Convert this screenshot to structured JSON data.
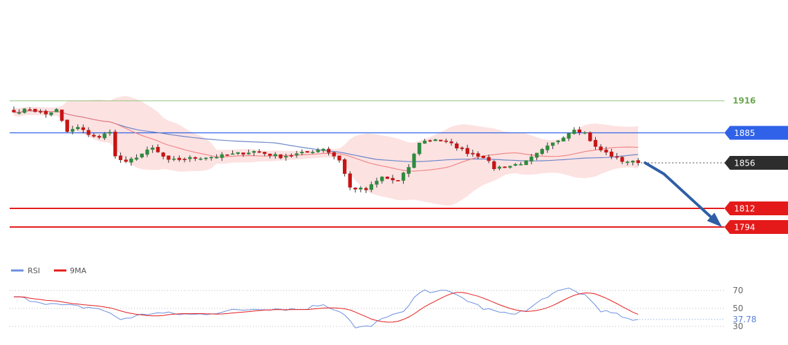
{
  "chart_data": [
    {
      "type": "candlestick",
      "title": "",
      "ylim": [
        1760,
        1935
      ],
      "levels": [
        {
          "name": "1916-level",
          "value": 1916,
          "label": "1916",
          "color": "#8fc27a",
          "style": "text-only"
        },
        {
          "name": "1885-level",
          "value": 1885,
          "label": "1885",
          "color": "#2f62e8",
          "style": "badge"
        },
        {
          "name": "1856-level",
          "value": 1856,
          "label": "1856",
          "color": "#2d2d2d",
          "style": "badge-dotted"
        },
        {
          "name": "1812-level",
          "value": 1812,
          "label": "1812",
          "color": "#e41a1a",
          "style": "badge"
        },
        {
          "name": "1794-level",
          "value": 1794,
          "label": "1794",
          "color": "#e41a1a",
          "style": "badge"
        }
      ],
      "projection": {
        "from": [
          117,
          1856
        ],
        "mid": [
          120,
          1852
        ],
        "to": [
          130,
          1794
        ],
        "color": "#2f5ea6"
      },
      "colors": {
        "up": "#2e8b3e",
        "down": "#c81414",
        "ma_fast": "#f08080",
        "ma_slow": "#6a86c8",
        "band_fill": "#fcd8d8"
      },
      "anchors": [
        {
          "i": 0,
          "close": 1905
        },
        {
          "i": 3,
          "close": 1908
        },
        {
          "i": 6,
          "close": 1903
        },
        {
          "i": 8,
          "close": 1907
        },
        {
          "i": 9,
          "close": 1896
        },
        {
          "i": 10,
          "close": 1886
        },
        {
          "i": 12,
          "close": 1890
        },
        {
          "i": 14,
          "close": 1884
        },
        {
          "i": 16,
          "close": 1880
        },
        {
          "i": 18,
          "close": 1887
        },
        {
          "i": 19,
          "close": 1862
        },
        {
          "i": 21,
          "close": 1856
        },
        {
          "i": 23,
          "close": 1862
        },
        {
          "i": 26,
          "close": 1870
        },
        {
          "i": 29,
          "close": 1858
        },
        {
          "i": 32,
          "close": 1860
        },
        {
          "i": 38,
          "close": 1862
        },
        {
          "i": 45,
          "close": 1867
        },
        {
          "i": 50,
          "close": 1862
        },
        {
          "i": 55,
          "close": 1866
        },
        {
          "i": 58,
          "close": 1870
        },
        {
          "i": 61,
          "close": 1859
        },
        {
          "i": 63,
          "close": 1832
        },
        {
          "i": 66,
          "close": 1830
        },
        {
          "i": 69,
          "close": 1842
        },
        {
          "i": 72,
          "close": 1838
        },
        {
          "i": 74,
          "close": 1852
        },
        {
          "i": 76,
          "close": 1876
        },
        {
          "i": 79,
          "close": 1879
        },
        {
          "i": 82,
          "close": 1874
        },
        {
          "i": 85,
          "close": 1866
        },
        {
          "i": 88,
          "close": 1862
        },
        {
          "i": 90,
          "close": 1851
        },
        {
          "i": 93,
          "close": 1853
        },
        {
          "i": 96,
          "close": 1857
        },
        {
          "i": 99,
          "close": 1868
        },
        {
          "i": 102,
          "close": 1878
        },
        {
          "i": 105,
          "close": 1889
        },
        {
          "i": 107,
          "close": 1885
        },
        {
          "i": 109,
          "close": 1871
        },
        {
          "i": 112,
          "close": 1863
        },
        {
          "i": 114,
          "close": 1858
        },
        {
          "i": 117,
          "close": 1856
        }
      ]
    },
    {
      "type": "line",
      "title": "",
      "series": [
        {
          "name": "RSI",
          "color": "#6a8ee0"
        },
        {
          "name": "9MA",
          "color": "#e41a1a"
        }
      ],
      "yticks": [
        70,
        50,
        30
      ],
      "ylim": [
        25,
        80
      ],
      "current_rsi_label": "37.78",
      "rsi_anchors": [
        {
          "i": 0,
          "v": 63
        },
        {
          "i": 8,
          "v": 54
        },
        {
          "i": 16,
          "v": 50
        },
        {
          "i": 20,
          "v": 38
        },
        {
          "i": 26,
          "v": 45
        },
        {
          "i": 34,
          "v": 43
        },
        {
          "i": 40,
          "v": 47
        },
        {
          "i": 46,
          "v": 50
        },
        {
          "i": 54,
          "v": 49
        },
        {
          "i": 58,
          "v": 55
        },
        {
          "i": 62,
          "v": 44
        },
        {
          "i": 64,
          "v": 28
        },
        {
          "i": 67,
          "v": 30
        },
        {
          "i": 70,
          "v": 42
        },
        {
          "i": 73,
          "v": 45
        },
        {
          "i": 76,
          "v": 68
        },
        {
          "i": 80,
          "v": 71
        },
        {
          "i": 84,
          "v": 62
        },
        {
          "i": 88,
          "v": 50
        },
        {
          "i": 92,
          "v": 44
        },
        {
          "i": 96,
          "v": 47
        },
        {
          "i": 100,
          "v": 64
        },
        {
          "i": 104,
          "v": 72
        },
        {
          "i": 107,
          "v": 65
        },
        {
          "i": 110,
          "v": 48
        },
        {
          "i": 114,
          "v": 41
        },
        {
          "i": 116,
          "v": 35
        },
        {
          "i": 117,
          "v": 37.78
        }
      ]
    }
  ],
  "legend": {
    "rsi_label": "RSI",
    "ma_label": "9MA"
  }
}
